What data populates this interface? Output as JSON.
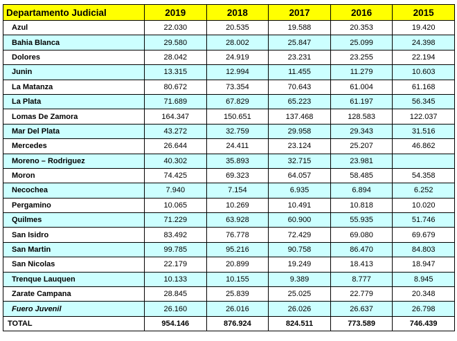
{
  "header": {
    "label": "Departamento Judicial",
    "years": [
      "2019",
      "2018",
      "2017",
      "2016",
      "2015"
    ]
  },
  "rows": [
    {
      "name": "Azul",
      "values": [
        "22.030",
        "20.535",
        "19.588",
        "20.353",
        "19.420"
      ]
    },
    {
      "name": "Bahia Blanca",
      "values": [
        "29.580",
        "28.002",
        "25.847",
        "25.099",
        "24.398"
      ]
    },
    {
      "name": "Dolores",
      "values": [
        "28.042",
        "24.919",
        "23.231",
        "23.255",
        "22.194"
      ]
    },
    {
      "name": "Junin",
      "values": [
        "13.315",
        "12.994",
        "11.455",
        "11.279",
        "10.603"
      ]
    },
    {
      "name": "La Matanza",
      "values": [
        "80.672",
        "73.354",
        "70.643",
        "61.004",
        "61.168"
      ]
    },
    {
      "name": "La Plata",
      "values": [
        "71.689",
        "67.829",
        "65.223",
        "61.197",
        "56.345"
      ]
    },
    {
      "name": "Lomas De Zamora",
      "values": [
        "164.347",
        "150.651",
        "137.468",
        "128.583",
        "122.037"
      ]
    },
    {
      "name": "Mar Del Plata",
      "values": [
        "43.272",
        "32.759",
        "29.958",
        "29.343",
        "31.516"
      ]
    },
    {
      "name": "Mercedes",
      "values": [
        "26.644",
        "24.411",
        "23.124",
        "25.207",
        "46.862"
      ]
    },
    {
      "name": "Moreno – Rodriguez",
      "values": [
        "40.302",
        "35.893",
        "32.715",
        "23.981",
        ""
      ]
    },
    {
      "name": "Moron",
      "values": [
        "74.425",
        "69.323",
        "64.057",
        "58.485",
        "54.358"
      ]
    },
    {
      "name": "Necochea",
      "values": [
        "7.940",
        "7.154",
        "6.935",
        "6.894",
        "6.252"
      ]
    },
    {
      "name": "Pergamino",
      "values": [
        "10.065",
        "10.269",
        "10.491",
        "10.818",
        "10.020"
      ]
    },
    {
      "name": "Quilmes",
      "values": [
        "71.229",
        "63.928",
        "60.900",
        "55.935",
        "51.746"
      ]
    },
    {
      "name": "San Isidro",
      "values": [
        "83.492",
        "76.778",
        "72.429",
        "69.080",
        "69.679"
      ]
    },
    {
      "name": "San Martin",
      "values": [
        "99.785",
        "95.216",
        "90.758",
        "86.470",
        "84.803"
      ]
    },
    {
      "name": "San Nicolas",
      "values": [
        "22.179",
        "20.899",
        "19.249",
        "18.413",
        "18.947"
      ]
    },
    {
      "name": "Trenque Lauquen",
      "values": [
        "10.133",
        "10.155",
        "9.389",
        "8.777",
        "8.945"
      ]
    },
    {
      "name": "Zarate Campana",
      "values": [
        "28.845",
        "25.839",
        "25.025",
        "22.779",
        "20.348"
      ]
    },
    {
      "name": "Fuero Juvenil",
      "values": [
        "26.160",
        "26.016",
        "26.026",
        "26.637",
        "26.798"
      ],
      "italic": true
    }
  ],
  "total": {
    "name": "TOTAL",
    "values": [
      "954.146",
      "876.924",
      "824.511",
      "773.589",
      "746.439"
    ]
  },
  "colors": {
    "header_bg": "#ffff00",
    "alt_row_bg": "#ccffff",
    "border": "#000000"
  }
}
